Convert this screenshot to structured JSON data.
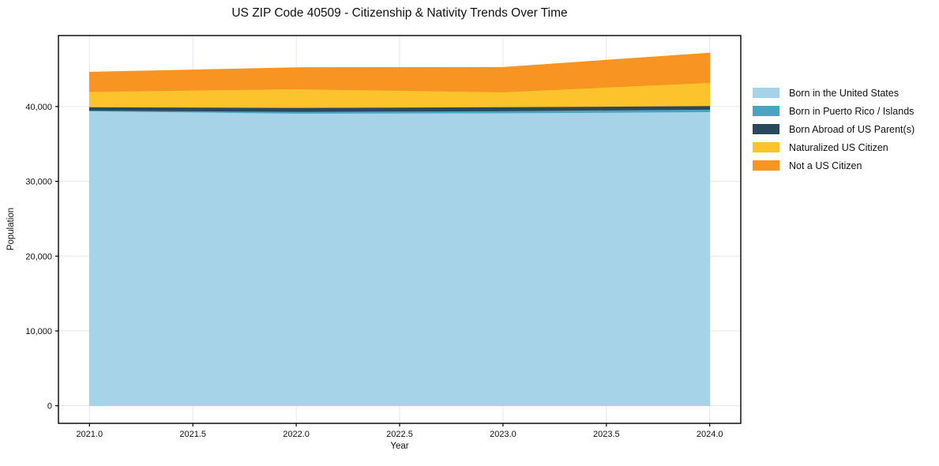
{
  "title": "US ZIP Code 40509 - Citizenship & Nativity Trends Over Time",
  "chart_data": {
    "type": "area",
    "stacked": true,
    "x": [
      2021,
      2022,
      2023,
      2024
    ],
    "series": [
      {
        "name": "Born in the United States",
        "color": "#a6d3e8",
        "values": [
          39400,
          39100,
          39150,
          39300
        ]
      },
      {
        "name": "Born in Puerto Rico / Islands",
        "color": "#4ba3c2",
        "values": [
          100,
          230,
          280,
          330
        ]
      },
      {
        "name": "Born Abroad of US Parent(s)",
        "color": "#2a4a5c",
        "values": [
          450,
          530,
          520,
          480
        ]
      },
      {
        "name": "Naturalized US Citizen",
        "color": "#fdc32d",
        "values": [
          2050,
          2500,
          2000,
          3100
        ]
      },
      {
        "name": "Not a US Citizen",
        "color": "#f79422",
        "values": [
          2600,
          2850,
          3300,
          3950
        ]
      }
    ],
    "totals": [
      44600,
      45210,
      45250,
      47160
    ],
    "xlabel": "Year",
    "ylabel": "Population",
    "xticks": [
      "2021.0",
      "2021.5",
      "2022.0",
      "2022.5",
      "2023.0",
      "2023.5",
      "2024.0"
    ],
    "xtick_values": [
      2021,
      2021.5,
      2022,
      2022.5,
      2023,
      2023.5,
      2024
    ],
    "yticks": [
      "0",
      "10,000",
      "20,000",
      "30,000",
      "40,000"
    ],
    "ytick_values": [
      0,
      10000,
      20000,
      30000,
      40000
    ],
    "xlim": [
      2020.85,
      2024.15
    ],
    "ylim": [
      -2357,
      49497
    ],
    "grid": true,
    "grid_color": "#e7e7e7",
    "spine_color": "#000000",
    "legend_position": "right"
  }
}
